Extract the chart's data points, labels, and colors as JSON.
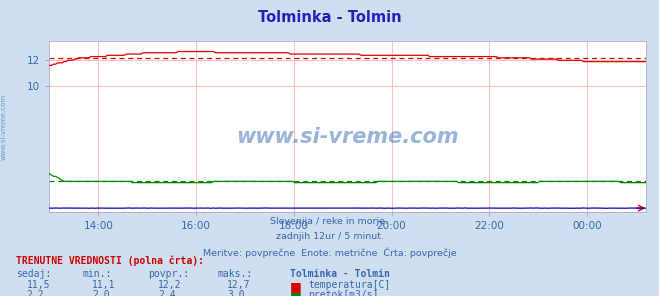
{
  "title": "Tolminka - Tolmin",
  "title_color": "#2222bb",
  "bg_color": "#d0dff0",
  "plot_bg_color": "#ffffff",
  "subtitle_lines": [
    "Slovenija / reke in morje.",
    "zadnjih 12ur / 5 minut.",
    "Meritve: povprečne  Enote: metrične  Črta: povprečje"
  ],
  "subtitle_color": "#3366aa",
  "tick_labels": [
    "14:00",
    "16:00",
    "18:00",
    "20:00",
    "22:00",
    "00:00"
  ],
  "yticks": [
    10,
    12
  ],
  "ylim": [
    0.0,
    13.5
  ],
  "xlim_start": 13.0,
  "xlim_end": 25.2,
  "tick_hours": [
    14,
    16,
    18,
    20,
    22,
    24
  ],
  "temp_color": "#dd0000",
  "flow_color": "#008800",
  "level_color": "#0000cc",
  "grid_color": "#ffbbbb",
  "hgrid_color": "#ffbbbb",
  "watermark": "www.si-vreme.com",
  "watermark_color": "#4477bb",
  "label_bold_text": "TRENUTNE VREDNOSTI (polna črta):",
  "label_color": "#cc0000",
  "col_headers": [
    "sedaj:",
    "min.:",
    "povpr.:",
    "maks.:"
  ],
  "col_header_color": "#3366aa",
  "station_label": "Tolminka - Tolmin",
  "station_label_color": "#3366aa",
  "row1_values": [
    "11,5",
    "11,1",
    "12,2",
    "12,7"
  ],
  "row2_values": [
    "2,2",
    "2,0",
    "2,4",
    "3,0"
  ],
  "legend_temp": "temperatura[C]",
  "legend_flow": "pretok[m3/s]",
  "temp_avg": 12.2,
  "flow_avg": 2.4,
  "num_points": 288
}
